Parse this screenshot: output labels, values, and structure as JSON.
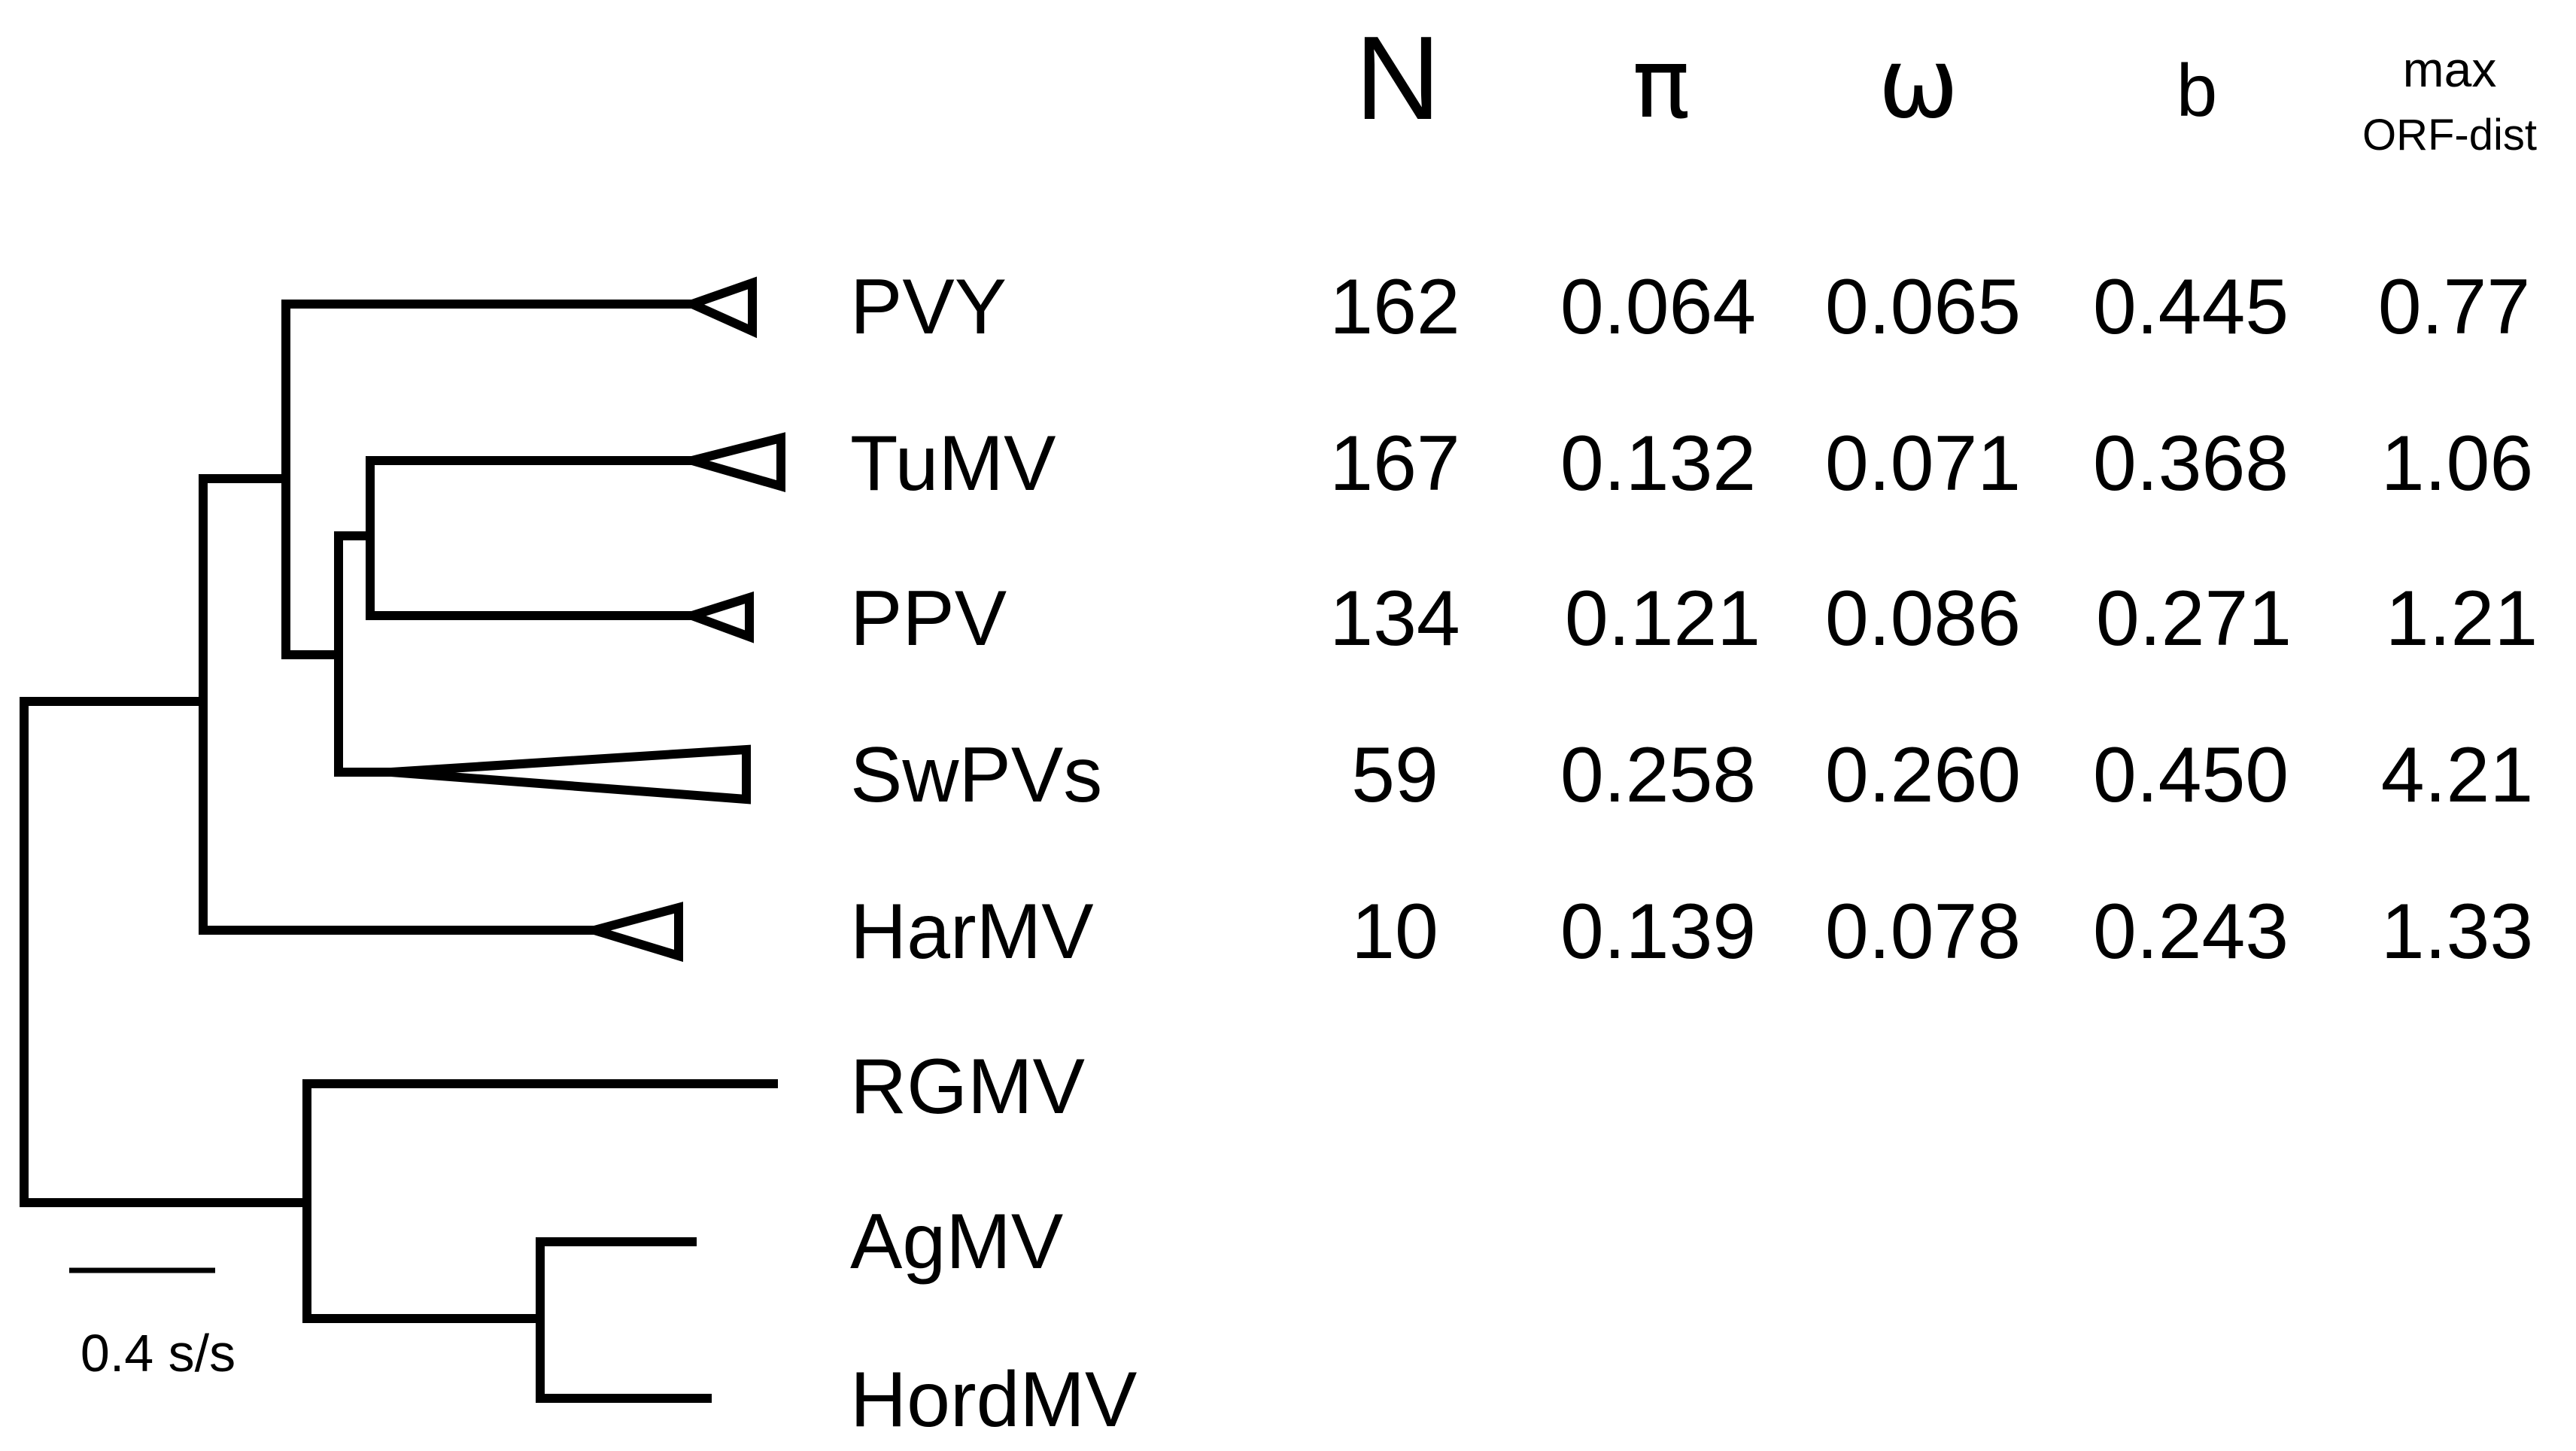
{
  "columns": [
    {
      "key": "N",
      "label": "N"
    },
    {
      "key": "pi",
      "label": "π"
    },
    {
      "key": "omega",
      "label": "ω"
    },
    {
      "key": "b",
      "label": "b"
    },
    {
      "key": "maxorf",
      "label_line1": "max",
      "label_line2": "ORF-dist"
    }
  ],
  "taxa": [
    {
      "name": "PVY",
      "N": "162",
      "pi": "0.064",
      "omega": "0.065",
      "b": "0.445",
      "maxorf": "0.77"
    },
    {
      "name": "TuMV",
      "N": "167",
      "pi": "0.132",
      "omega": "0.071",
      "b": "0.368",
      "maxorf": "1.06"
    },
    {
      "name": "PPV",
      "N": "134",
      "pi": "0.121",
      "omega": "0.086",
      "b": "0.271",
      "maxorf": "1.21"
    },
    {
      "name": "SwPVs",
      "N": "59",
      "pi": "0.258",
      "omega": "0.260",
      "b": "0.450",
      "maxorf": "4.21"
    },
    {
      "name": "HarMV",
      "N": "10",
      "pi": "0.139",
      "omega": "0.078",
      "b": "0.243",
      "maxorf": "1.33"
    },
    {
      "name": "RGMV"
    },
    {
      "name": "AgMV"
    },
    {
      "name": "HordMV"
    }
  ],
  "scale_bar": {
    "label": "0.4 s/s",
    "value": 0.4
  }
}
